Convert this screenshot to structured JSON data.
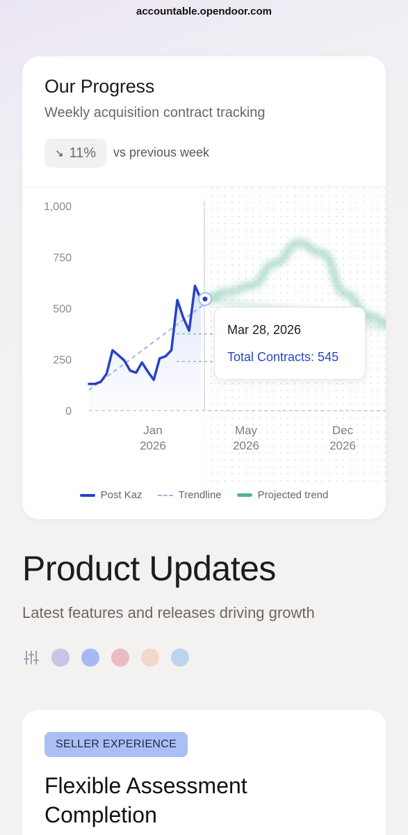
{
  "browser": {
    "url": "accountable.opendoor.com"
  },
  "progress": {
    "title": "Our Progress",
    "subtitle": "Weekly acquisition contract tracking",
    "change_value": "11%",
    "change_direction": "down",
    "change_label": "vs previous week"
  },
  "chart_data": {
    "type": "line",
    "y_ticks": [
      "1,000",
      "750",
      "500",
      "250",
      "0"
    ],
    "x_ticks": [
      {
        "month": "Jan",
        "year": "2026"
      },
      {
        "month": "May",
        "year": "2026"
      },
      {
        "month": "Dec",
        "year": "2026"
      }
    ],
    "ylim": [
      0,
      1000
    ],
    "series": [
      {
        "name": "Post Kaz",
        "color": "#2741c8",
        "style": "solid",
        "values": [
          130,
          130,
          140,
          180,
          295,
          270,
          245,
          195,
          185,
          235,
          190,
          150,
          255,
          265,
          295,
          540,
          455,
          390,
          610,
          545
        ]
      },
      {
        "name": "Trendline",
        "color": "#9fb4dc",
        "style": "dashed",
        "values": [
          100,
          520
        ]
      },
      {
        "name": "Projected trend",
        "color": "#58b28a",
        "style": "blurred",
        "values": [
          545,
          580,
          610,
          720,
          820,
          770,
          570,
          460,
          420
        ]
      }
    ],
    "tooltip": {
      "date": "Mar 28, 2026",
      "label": "Total Contracts: 545"
    },
    "grid": "dotted (projection area)"
  },
  "updates": {
    "title": "Product Updates",
    "subtitle": "Latest features and releases driving growth",
    "filter_icon": "sliders-icon",
    "filter_colors": [
      "#cac4e8",
      "#a6b9f5",
      "#e8bcc3",
      "#f2d8c9",
      "#bdd4ef"
    ],
    "card": {
      "category": "SELLER EXPERIENCE",
      "title": "Flexible Assessment Completion"
    }
  }
}
